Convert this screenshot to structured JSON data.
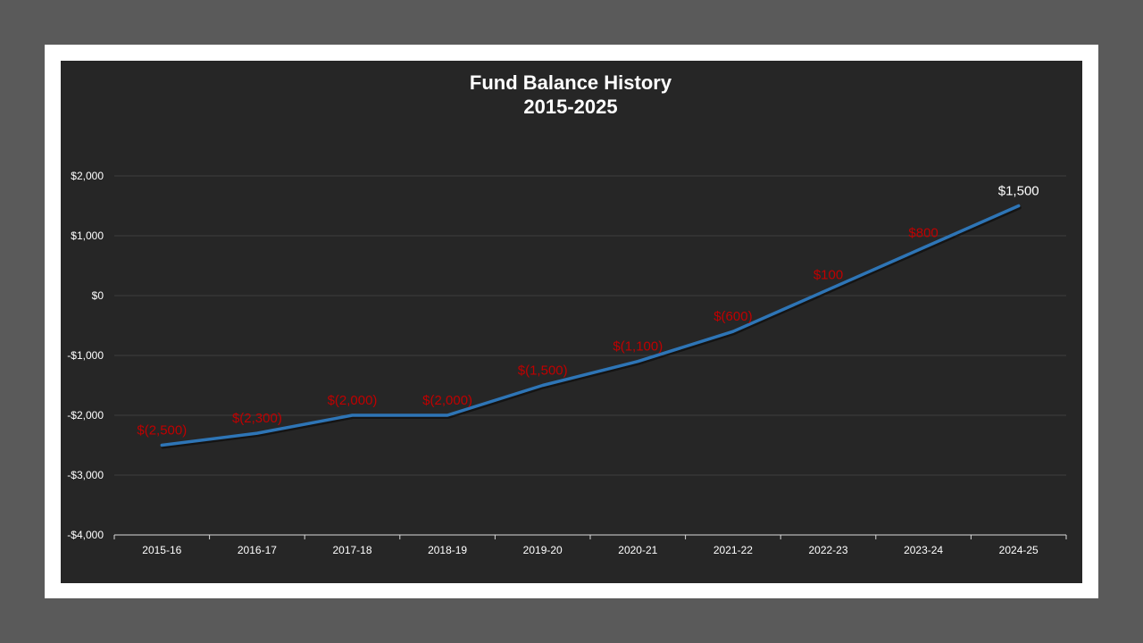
{
  "chart_data": {
    "type": "line",
    "title": "Fund Balance History",
    "subtitle": "2015-2025",
    "categories": [
      "2015-16",
      "2016-17",
      "2017-18",
      "2018-19",
      "2019-20",
      "2020-21",
      "2021-22",
      "2022-23",
      "2023-24",
      "2024-25"
    ],
    "series": [
      {
        "values": [
          -2500,
          -2300,
          -2000,
          -2000,
          -1500,
          -1100,
          -600,
          100,
          800,
          1500
        ],
        "labels": [
          "$(2,500)",
          "$(2,300)",
          "$(2,000)",
          "$(2,000)",
          "$(1,500)",
          "$(1,100)",
          "$(600)",
          "$100",
          "$800",
          "$1,500"
        ],
        "color": "#2e75b6"
      }
    ],
    "ylim": [
      -4000,
      2000
    ],
    "yticks": [
      2000,
      1000,
      0,
      -1000,
      -2000,
      -3000,
      -4000
    ],
    "ytick_labels": [
      "$2,000",
      "$1,000",
      "$0",
      "-$1,000",
      "-$2,000",
      "-$3,000",
      "-$4,000"
    ],
    "grid": true,
    "legend": false,
    "xlabel": "",
    "ylabel": ""
  },
  "colors": {
    "outer_background": "#5a5a5a",
    "frame": "#ffffff",
    "plot_background": "#262626",
    "gridline": "#3f3f3f",
    "axis": "#d9d9d9",
    "text": "#ffffff",
    "label_default": "#c00000",
    "label_last": "#ffffff",
    "line": "#2e75b6"
  }
}
